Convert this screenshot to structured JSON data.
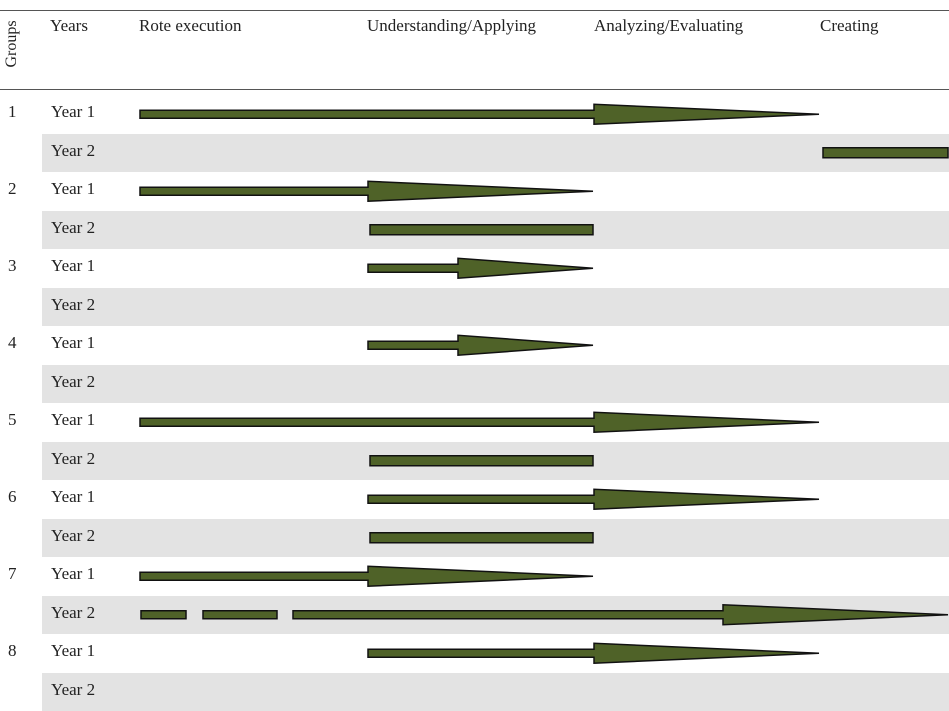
{
  "headers": {
    "groups": "Groups",
    "years": "Years",
    "rote": "Rote execution",
    "understanding": "Understanding/Applying",
    "analyzing": "Analyzing/Evaluating",
    "creating": "Creating"
  },
  "colors": {
    "bar_fill": "#4f6228",
    "bar_stroke": "#111111",
    "shade": "#e3e3e3"
  },
  "rows": [
    {
      "group": "1",
      "year": "Year 1",
      "segments": [
        {
          "from": 0,
          "to": 3,
          "style": "arrow"
        }
      ]
    },
    {
      "group": "",
      "year": "Year 2",
      "segments": [
        {
          "from": 3,
          "to": 4,
          "style": "bar"
        }
      ]
    },
    {
      "group": "2",
      "year": "Year 1",
      "segments": [
        {
          "from": 0,
          "to": 2,
          "style": "arrow"
        }
      ]
    },
    {
      "group": "",
      "year": "Year 2",
      "segments": [
        {
          "from": 1,
          "to": 2,
          "style": "bar"
        }
      ]
    },
    {
      "group": "3",
      "year": "Year 1",
      "segments": [
        {
          "from": 1,
          "to": 2,
          "style": "arrow"
        }
      ]
    },
    {
      "group": "",
      "year": "Year 2",
      "segments": []
    },
    {
      "group": "4",
      "year": "Year 1",
      "segments": [
        {
          "from": 1,
          "to": 2,
          "style": "arrow"
        }
      ]
    },
    {
      "group": "",
      "year": "Year 2",
      "segments": []
    },
    {
      "group": "5",
      "year": "Year 1",
      "segments": [
        {
          "from": 0,
          "to": 3,
          "style": "arrow"
        }
      ]
    },
    {
      "group": "",
      "year": "Year 2",
      "segments": [
        {
          "from": 1,
          "to": 2,
          "style": "bar"
        }
      ]
    },
    {
      "group": "6",
      "year": "Year 1",
      "segments": [
        {
          "from": 1,
          "to": 3,
          "style": "arrow"
        }
      ]
    },
    {
      "group": "",
      "year": "Year 2",
      "segments": [
        {
          "from": 1,
          "to": 2,
          "style": "bar"
        }
      ]
    },
    {
      "group": "7",
      "year": "Year 1",
      "segments": [
        {
          "from": 0,
          "to": 2,
          "style": "arrow"
        }
      ]
    },
    {
      "group": "",
      "year": "Year 2",
      "segments": [
        {
          "from": 0,
          "to": 4,
          "style": "dashed-arrow"
        }
      ]
    },
    {
      "group": "8",
      "year": "Year 1",
      "segments": [
        {
          "from": 1,
          "to": 3,
          "style": "arrow"
        }
      ]
    },
    {
      "group": "",
      "year": "Year 2",
      "segments": []
    }
  ]
}
